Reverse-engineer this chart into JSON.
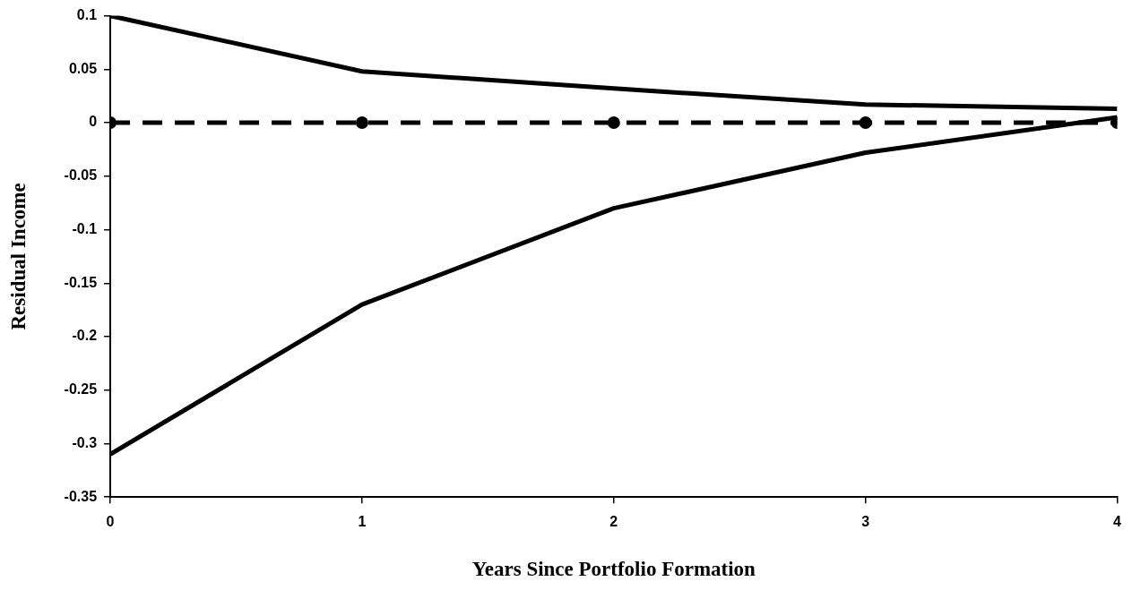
{
  "chart_data": {
    "type": "line",
    "xlabel": "Years Since Portfolio Formation",
    "ylabel": "Residual Income",
    "x": [
      0,
      1,
      2,
      3,
      4
    ],
    "series": [
      {
        "color": "#000000",
        "values": [
          0.1,
          0.048,
          0.032,
          0.017,
          0.013
        ],
        "line_style": "solid",
        "marker": "none"
      },
      {
        "color": "#000000",
        "values": [
          0,
          0,
          0,
          0,
          0
        ],
        "line_style": "dashed",
        "marker": "circle"
      },
      {
        "color": "#000000",
        "values": [
          -0.31,
          -0.17,
          -0.08,
          -0.028,
          0.005
        ],
        "line_style": "solid",
        "marker": "none"
      }
    ],
    "xlim": [
      0,
      4
    ],
    "xticks": [
      0,
      1,
      2,
      3,
      4
    ],
    "ylim": [
      -0.35,
      0.1
    ],
    "yticks": [
      -0.35,
      -0.3,
      -0.25,
      -0.2,
      -0.15,
      -0.1,
      -0.05,
      0,
      0.05,
      0.1
    ],
    "grid": false,
    "legend": false
  }
}
